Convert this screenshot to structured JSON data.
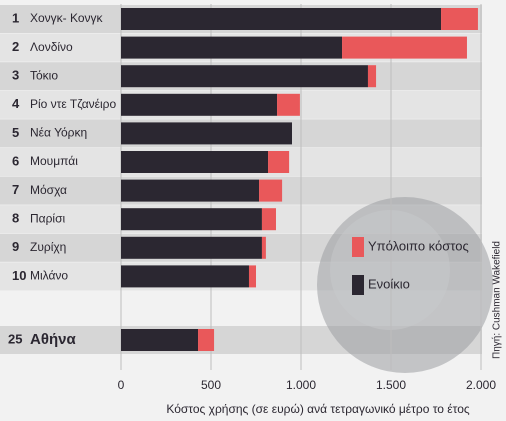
{
  "chart_data": {
    "type": "stacked-barh",
    "ranks": [
      "1",
      "2",
      "3",
      "4",
      "5",
      "6",
      "7",
      "8",
      "9",
      "10",
      "25"
    ],
    "categories": [
      "Χονγκ- Κονγκ",
      "Λονδίνο",
      "Τόκιο",
      "Ρίο ντε Τζανέιρο",
      "Νέα Υόρκη",
      "Μουμπάι",
      "Μόσχα",
      "Παρίσι",
      "Ζυρίχη",
      "Μιλάνο",
      "Αθήνα"
    ],
    "series": [
      {
        "name": "Ενοίκιο",
        "color": "#2b2731",
        "values": [
          1778,
          1228,
          1372,
          867,
          950,
          817,
          767,
          783,
          783,
          711,
          428
        ]
      },
      {
        "name": "Υπόλοιπο κόστος",
        "color": "#e9585a",
        "values": [
          205,
          694,
          45,
          127,
          0,
          117,
          128,
          78,
          22,
          39,
          89
        ]
      }
    ],
    "xlim": [
      0,
      2000
    ],
    "xticks": [
      0,
      500,
      {
        "value": 1000,
        "label": "1.000"
      },
      {
        "value": 1500,
        "label": "1.500"
      },
      {
        "value": 2000,
        "label": "2.000"
      }
    ],
    "xlabel": "Κόστος χρήσης (σε ευρώ) ανά τετραγωνικό μέτρο το έτος",
    "source": "Πηγή: Cushman Wakefield",
    "grid": true
  }
}
